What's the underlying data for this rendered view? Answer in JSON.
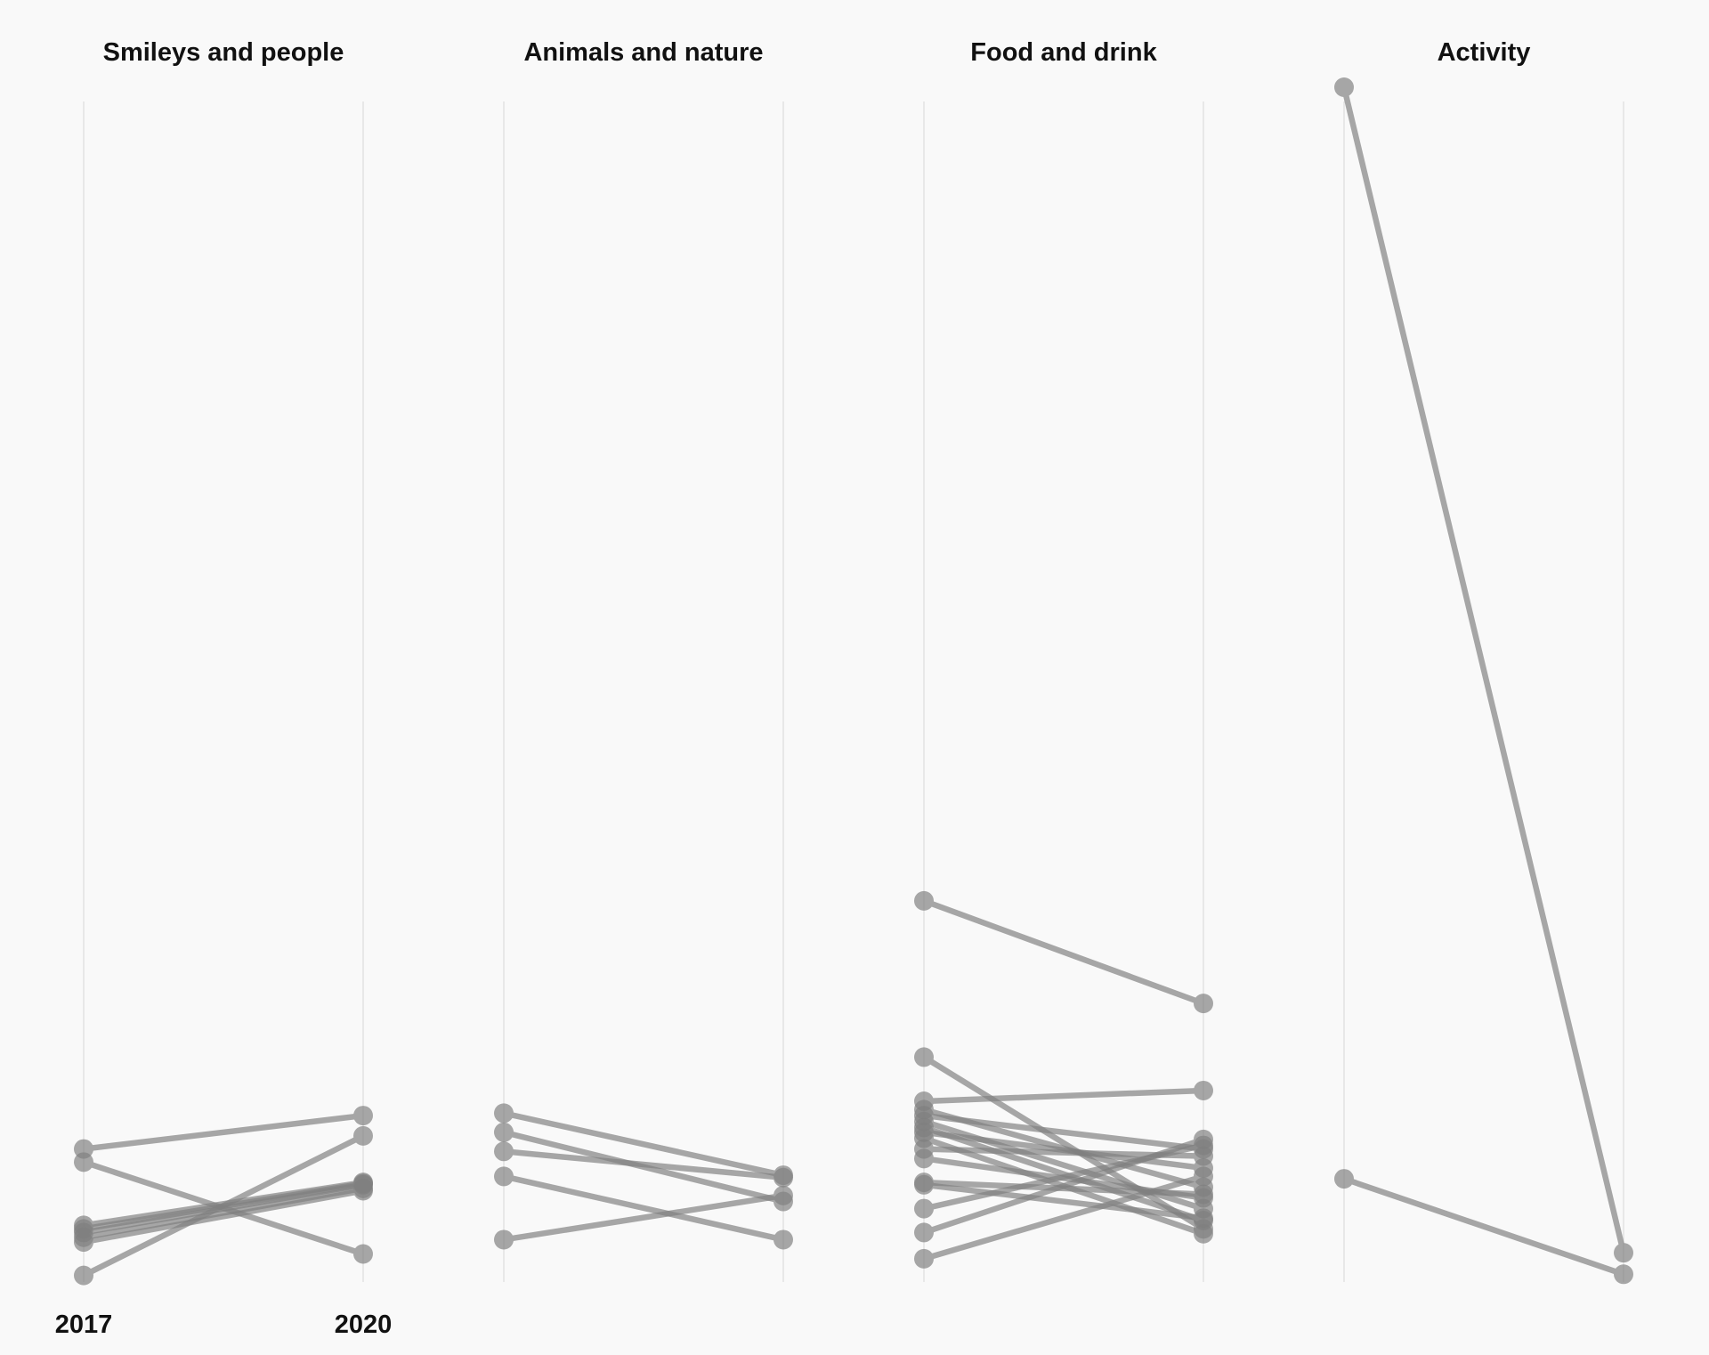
{
  "chart_data": {
    "type": "slope",
    "title": "",
    "x": [
      "2017",
      "2020"
    ],
    "x_labels_shown_on": "first-panel-only",
    "ylim": [
      0,
      1
    ],
    "grid": true,
    "legend": "none",
    "line_color": "#808080",
    "line_opacity": 0.68,
    "panels": [
      {
        "title": "Smileys and people",
        "series": [
          {
            "values": [
              0.11,
              0.138
            ]
          },
          {
            "values": [
              0.099,
              0.022
            ]
          },
          {
            "values": [
              0.046,
              0.082
            ]
          },
          {
            "values": [
              0.043,
              0.081
            ]
          },
          {
            "values": [
              0.04,
              0.08
            ]
          },
          {
            "values": [
              0.036,
              0.077
            ]
          },
          {
            "values": [
              0.032,
              0.075
            ]
          },
          {
            "values": [
              0.004,
              0.121
            ]
          }
        ]
      },
      {
        "title": "Animals and nature",
        "series": [
          {
            "values": [
              0.14,
              0.088
            ]
          },
          {
            "values": [
              0.124,
              0.066
            ]
          },
          {
            "values": [
              0.108,
              0.086
            ]
          },
          {
            "values": [
              0.087,
              0.034
            ]
          },
          {
            "values": [
              0.034,
              0.071
            ]
          }
        ]
      },
      {
        "title": "Food and drink",
        "series": [
          {
            "values": [
              0.318,
              0.232
            ]
          },
          {
            "values": [
              0.187,
              0.043
            ]
          },
          {
            "values": [
              0.15,
              0.159
            ]
          },
          {
            "values": [
              0.143,
              0.078
            ]
          },
          {
            "values": [
              0.138,
              0.11
            ]
          },
          {
            "values": [
              0.133,
              0.06
            ]
          },
          {
            "values": [
              0.128,
              0.05
            ]
          },
          {
            "values": [
              0.124,
              0.094
            ]
          },
          {
            "values": [
              0.119,
              0.039
            ]
          },
          {
            "values": [
              0.11,
              0.104
            ]
          },
          {
            "values": [
              0.102,
              0.069
            ]
          },
          {
            "values": [
              0.082,
              0.072
            ]
          },
          {
            "values": [
              0.08,
              0.052
            ]
          },
          {
            "values": [
              0.06,
              0.113
            ]
          },
          {
            "values": [
              0.04,
              0.118
            ]
          },
          {
            "values": [
              0.018,
              0.087
            ]
          }
        ]
      },
      {
        "title": "Activity",
        "series": [
          {
            "values": [
              1.0,
              0.023
            ]
          },
          {
            "values": [
              0.085,
              0.005
            ]
          }
        ]
      }
    ]
  }
}
